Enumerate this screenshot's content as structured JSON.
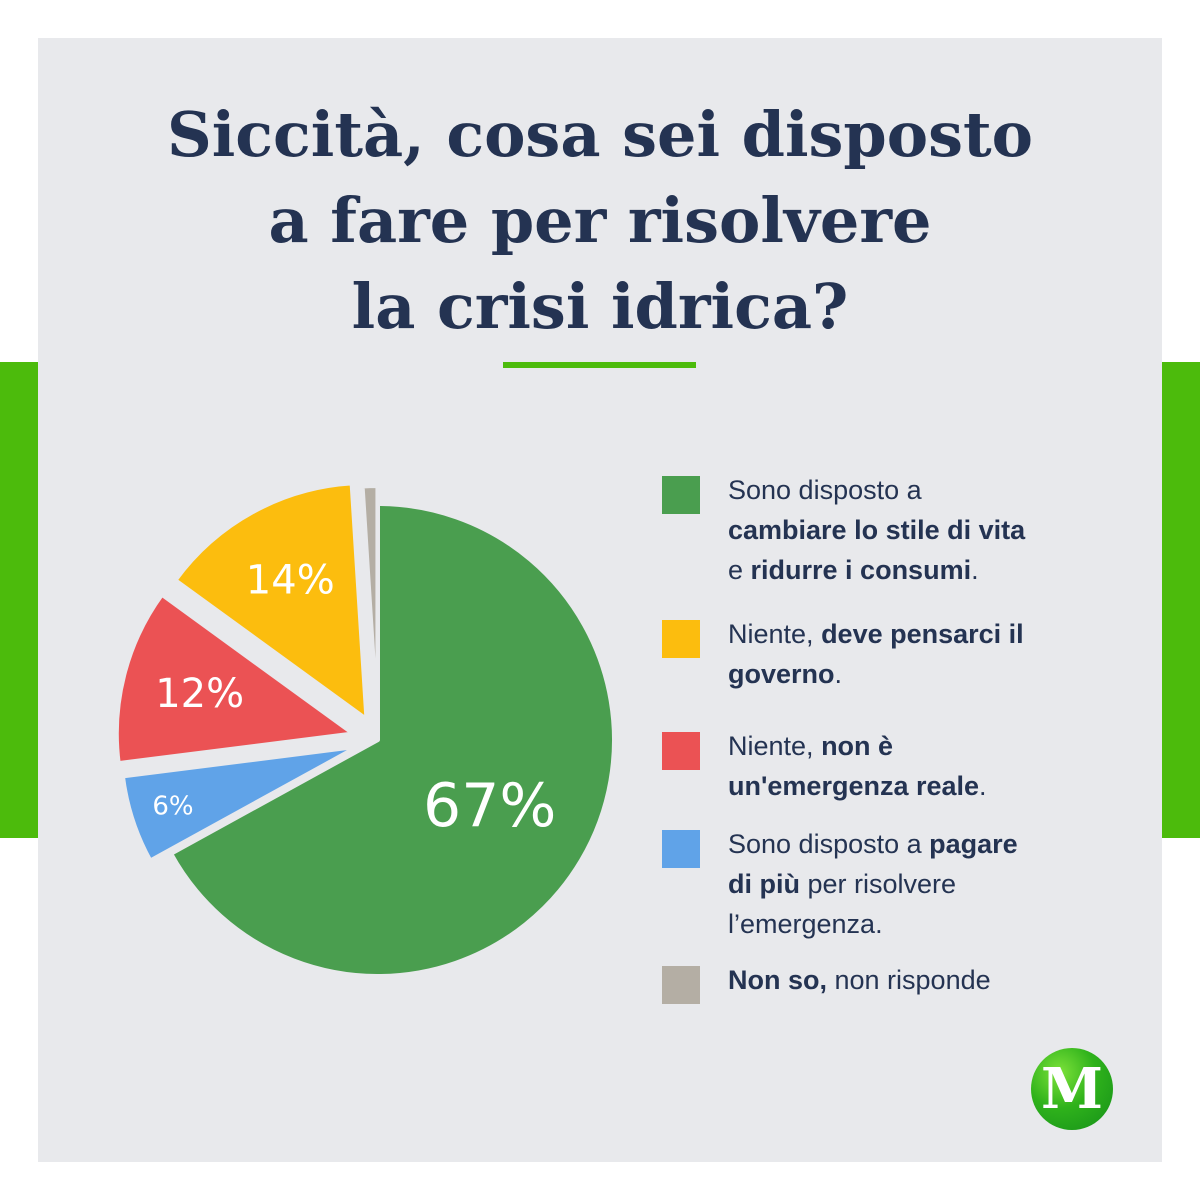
{
  "title_lines": [
    "Siccità, cosa sei disposto",
    "a fare per risolvere",
    "la crisi idrica?"
  ],
  "colors": {
    "brand_green": "#4cbb0c",
    "background": "#e8e9ec",
    "title": "#243352"
  },
  "chart_data": {
    "type": "pie",
    "unit": "%",
    "slices": [
      {
        "label": "Sono disposto a cambiare lo stile di vita e ridurre i consumi.",
        "value": 67,
        "value_label": "67%",
        "color": "#4a9e4f"
      },
      {
        "label": "Sono disposto a pagare di più per risolvere l’emergenza.",
        "value": 6,
        "value_label": "6%",
        "color": "#60a3e8"
      },
      {
        "label": "Niente, non è un'emergenza reale.",
        "value": 12,
        "value_label": "12%",
        "color": "#eb5254"
      },
      {
        "label": "Niente, deve pensarci il governo.",
        "value": 14,
        "value_label": "14%",
        "color": "#fcbd0e"
      },
      {
        "label": "Non so, non risponde",
        "value": 1,
        "value_label": "",
        "color": "#b4aea4"
      }
    ]
  },
  "legend": [
    {
      "color": "#4a9e4f",
      "name": "legend-cambiare-stile-vita",
      "parts": [
        {
          "text": "Sono disposto a",
          "bold": false
        },
        {
          "br": true
        },
        {
          "text": "cambiare lo stile di vita",
          "bold": true
        },
        {
          "br": true
        },
        {
          "text": "e ",
          "bold": false
        },
        {
          "text": "ridurre i consumi",
          "bold": true
        },
        {
          "text": ".",
          "bold": false
        }
      ]
    },
    {
      "color": "#fcbd0e",
      "name": "legend-pensarci-governo",
      "parts": [
        {
          "text": "Niente, ",
          "bold": false
        },
        {
          "text": "deve pensarci il",
          "bold": true
        },
        {
          "br": true
        },
        {
          "text": "governo",
          "bold": true
        },
        {
          "text": ".",
          "bold": false
        }
      ]
    },
    {
      "color": "#eb5254",
      "name": "legend-non-emergenza",
      "parts": [
        {
          "text": "Niente, ",
          "bold": false
        },
        {
          "text": "non è",
          "bold": true
        },
        {
          "br": true
        },
        {
          "text": "un'emergenza reale",
          "bold": true
        },
        {
          "text": ".",
          "bold": false
        }
      ]
    },
    {
      "color": "#60a3e8",
      "name": "legend-pagare-di-piu",
      "parts": [
        {
          "text": "Sono disposto a ",
          "bold": false
        },
        {
          "text": "pagare",
          "bold": true
        },
        {
          "br": true
        },
        {
          "text": "di più",
          "bold": true
        },
        {
          "text": " per risolvere",
          "bold": false
        },
        {
          "br": true
        },
        {
          "text": "l’emergenza.",
          "bold": false
        }
      ]
    },
    {
      "color": "#b4aea4",
      "name": "legend-non-so",
      "parts": [
        {
          "text": "Non so,",
          "bold": true
        },
        {
          "text": " non risponde",
          "bold": false
        }
      ]
    }
  ],
  "logo": {
    "letter": "M"
  }
}
